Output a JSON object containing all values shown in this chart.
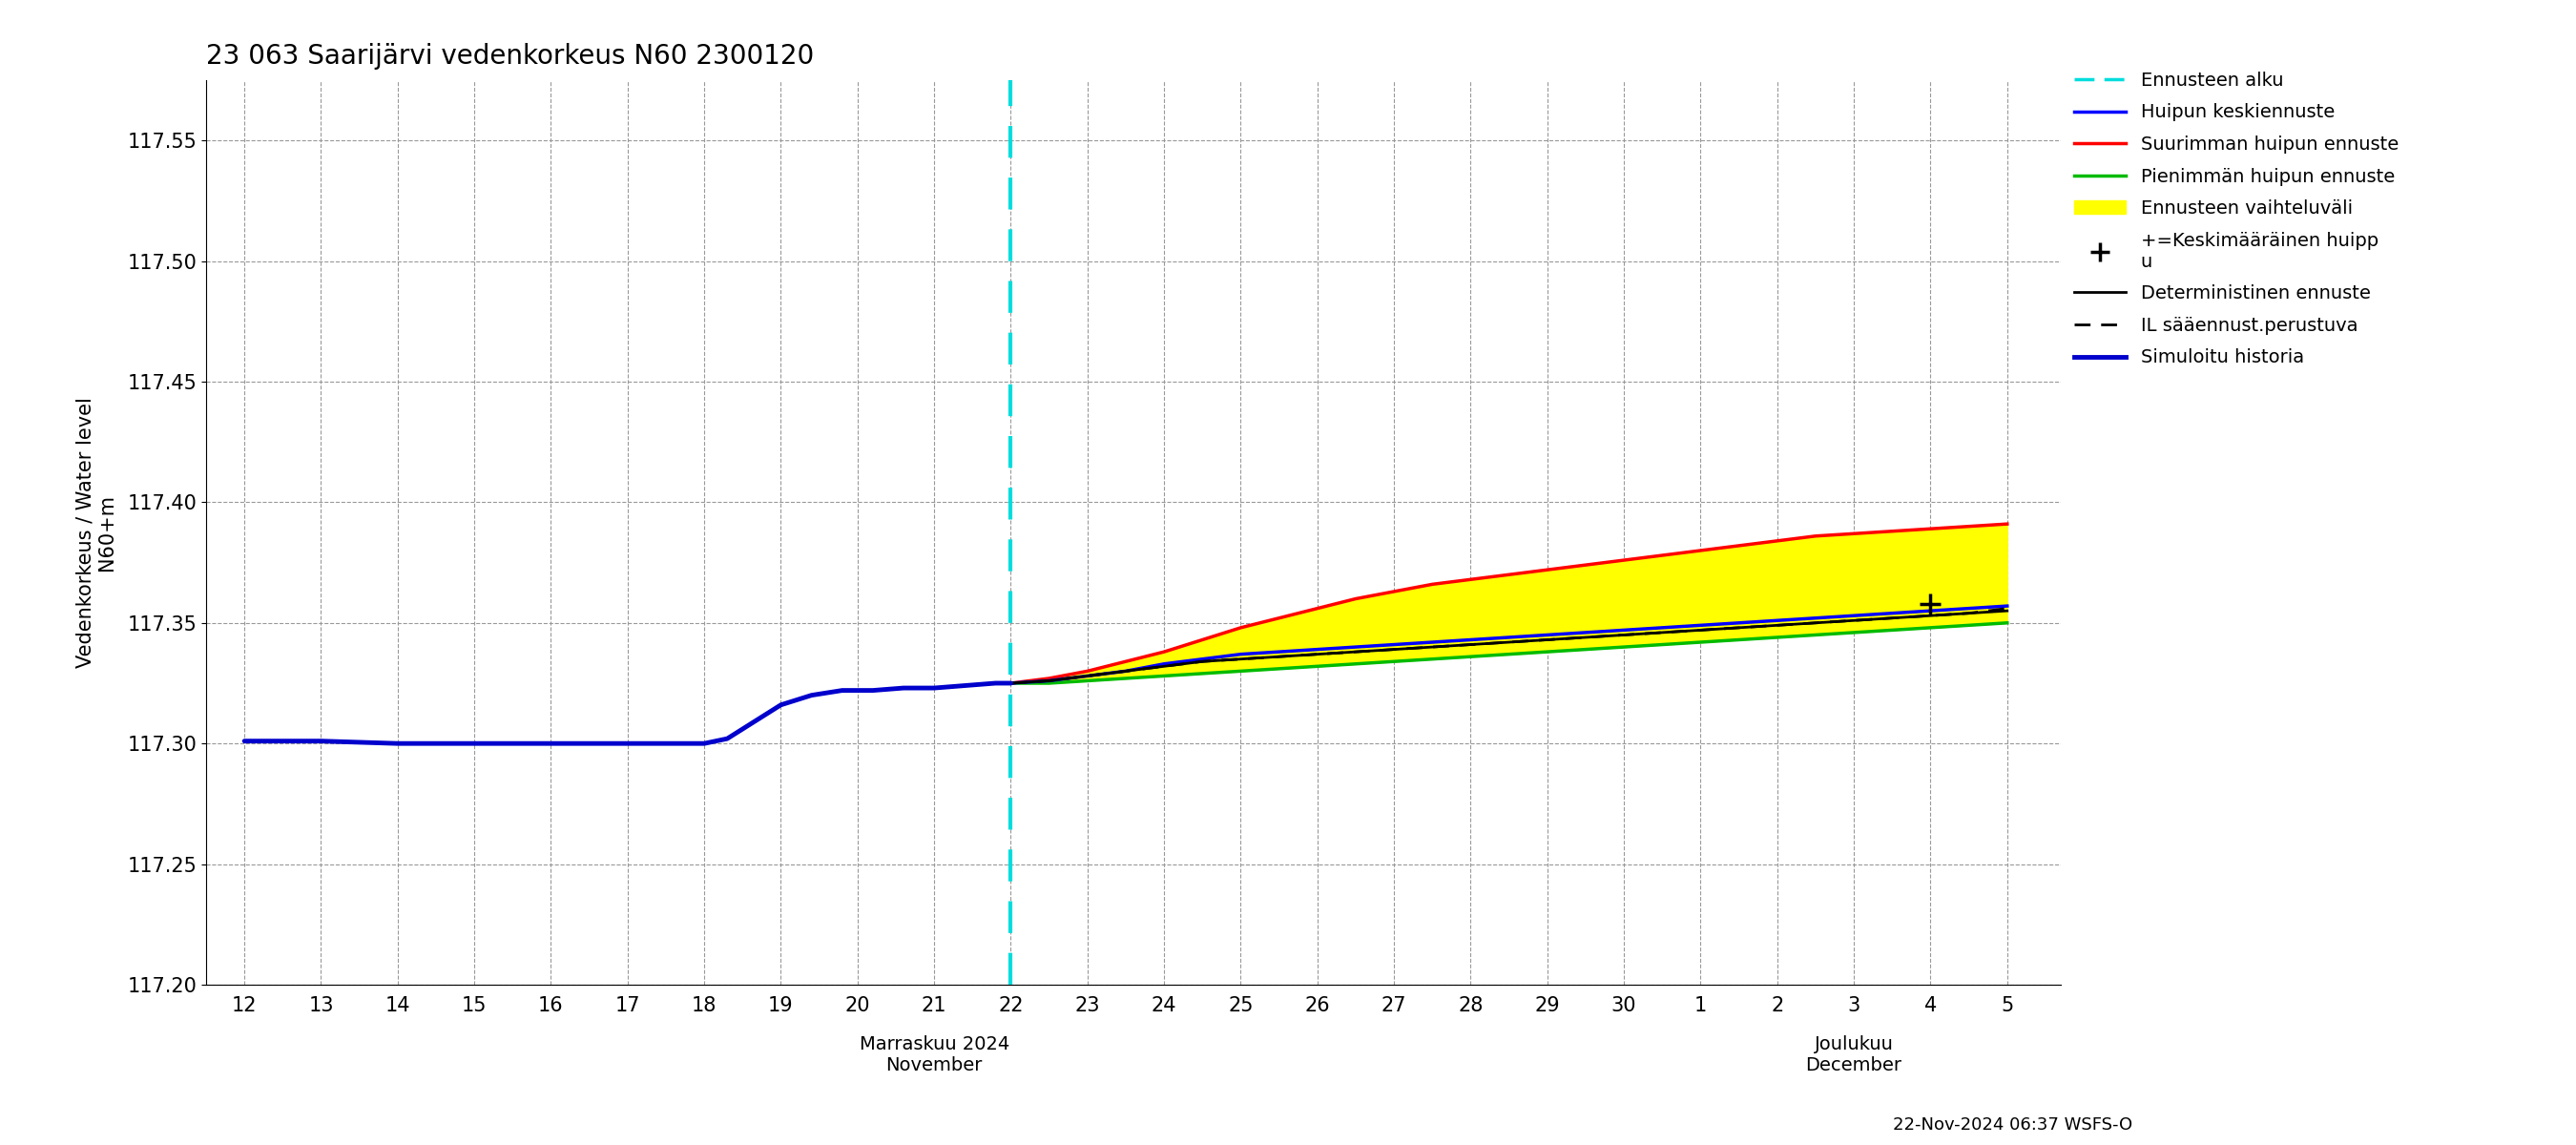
{
  "title": "23 063 Saarijärvi vedenkorkeus N60 2300120",
  "ylabel_fi": "Vedenkorkeus / Water level",
  "ylabel_en": "N60+m",
  "xlabel_nov": "Marraskuu 2024\nNovember",
  "xlabel_dec": "Joulukuu\nDecember",
  "footer": "22-Nov-2024 06:37 WSFS-O",
  "ylim": [
    117.2,
    117.575
  ],
  "yticks": [
    117.2,
    117.25,
    117.3,
    117.35,
    117.4,
    117.45,
    117.5,
    117.55
  ],
  "bg_color": "#ffffff",
  "grid_color": "#999999",
  "history_x": [
    12,
    13,
    14,
    15,
    16,
    17,
    18,
    18.3,
    18.6,
    19.0,
    19.4,
    19.8,
    20.2,
    20.6,
    21.0,
    21.4,
    21.8,
    22.0
  ],
  "history_y": [
    117.301,
    117.301,
    117.3,
    117.3,
    117.3,
    117.3,
    117.3,
    117.302,
    117.308,
    117.316,
    117.32,
    117.322,
    117.322,
    117.323,
    117.323,
    117.324,
    117.325,
    117.325
  ],
  "forecast_x": [
    22.0,
    22.5,
    23.0,
    23.5,
    24.0,
    24.5,
    25.0,
    25.5,
    26.0,
    26.5,
    27.0,
    27.5,
    28.0,
    28.5,
    29.0,
    29.5,
    30.0,
    30.5,
    31.0,
    31.5,
    32.0,
    32.5,
    33.0,
    33.5,
    34.0,
    34.5,
    35.0
  ],
  "red_y": [
    117.325,
    117.327,
    117.33,
    117.334,
    117.338,
    117.343,
    117.348,
    117.352,
    117.356,
    117.36,
    117.363,
    117.366,
    117.368,
    117.37,
    117.372,
    117.374,
    117.376,
    117.378,
    117.38,
    117.382,
    117.384,
    117.386,
    117.387,
    117.388,
    117.389,
    117.39,
    117.391
  ],
  "green_y": [
    117.325,
    117.325,
    117.326,
    117.327,
    117.328,
    117.329,
    117.33,
    117.331,
    117.332,
    117.333,
    117.334,
    117.335,
    117.336,
    117.337,
    117.338,
    117.339,
    117.34,
    117.341,
    117.342,
    117.343,
    117.344,
    117.345,
    117.346,
    117.347,
    117.348,
    117.349,
    117.35
  ],
  "blue_fc_y": [
    117.325,
    117.326,
    117.328,
    117.33,
    117.333,
    117.335,
    117.337,
    117.338,
    117.339,
    117.34,
    117.341,
    117.342,
    117.343,
    117.344,
    117.345,
    117.346,
    117.347,
    117.348,
    117.349,
    117.35,
    117.351,
    117.352,
    117.353,
    117.354,
    117.355,
    117.356,
    117.357
  ],
  "black_solid_y": [
    117.325,
    117.326,
    117.328,
    117.33,
    117.332,
    117.334,
    117.335,
    117.336,
    117.337,
    117.338,
    117.339,
    117.34,
    117.341,
    117.342,
    117.343,
    117.344,
    117.345,
    117.346,
    117.347,
    117.348,
    117.349,
    117.35,
    117.351,
    117.352,
    117.353,
    117.354,
    117.355
  ],
  "black_dash_y": [
    117.325,
    117.326,
    117.328,
    117.33,
    117.332,
    117.334,
    117.335,
    117.336,
    117.337,
    117.338,
    117.339,
    117.34,
    117.341,
    117.342,
    117.343,
    117.344,
    117.345,
    117.346,
    117.347,
    117.348,
    117.349,
    117.35,
    117.351,
    117.352,
    117.353,
    117.354,
    117.356
  ],
  "cross_x": [
    34.0
  ],
  "cross_y": [
    117.358
  ],
  "nov_xticks": [
    12,
    13,
    14,
    15,
    16,
    17,
    18,
    19,
    20,
    21,
    22,
    23,
    24,
    25,
    26,
    27,
    28,
    29,
    30
  ],
  "dec_xticks": [
    31,
    32,
    33,
    34,
    35
  ],
  "dec_labels": [
    "1",
    "2",
    "3",
    "4",
    "5"
  ],
  "nov_labels": [
    "12",
    "13",
    "14",
    "15",
    "16",
    "17",
    "18",
    "19",
    "20",
    "21",
    "22",
    "23",
    "24",
    "25",
    "26",
    "27",
    "28",
    "29",
    "30"
  ]
}
